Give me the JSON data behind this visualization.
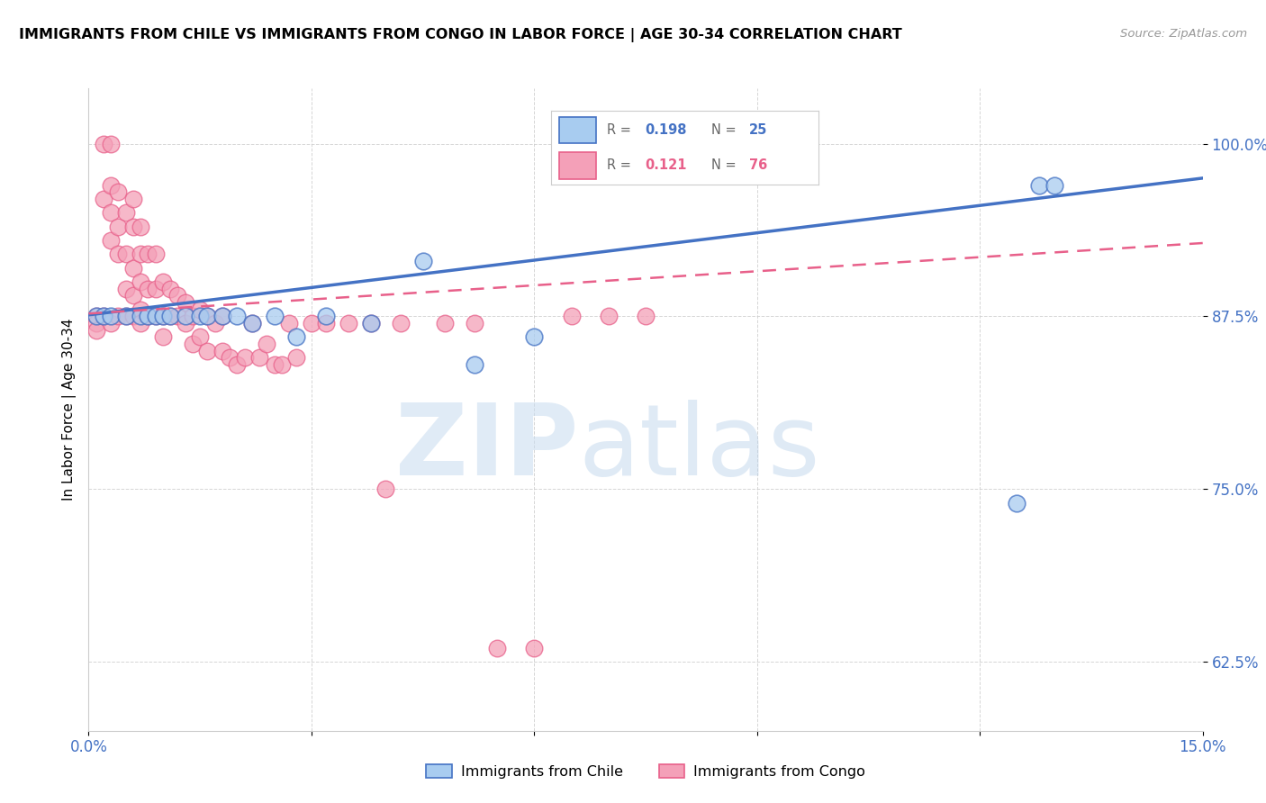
{
  "title": "IMMIGRANTS FROM CHILE VS IMMIGRANTS FROM CONGO IN LABOR FORCE | AGE 30-34 CORRELATION CHART",
  "source": "Source: ZipAtlas.com",
  "ylabel": "In Labor Force | Age 30-34",
  "yticks": [
    62.5,
    75.0,
    87.5,
    100.0
  ],
  "xlim": [
    0.0,
    0.15
  ],
  "ylim": [
    0.575,
    1.04
  ],
  "color_chile": "#A8CCF0",
  "color_congo": "#F4A0B8",
  "color_chile_line": "#4472C4",
  "color_congo_line": "#E8608A",
  "chile_x": [
    0.001,
    0.002,
    0.003,
    0.005,
    0.007,
    0.008,
    0.009,
    0.01,
    0.011,
    0.013,
    0.015,
    0.016,
    0.018,
    0.02,
    0.022,
    0.025,
    0.028,
    0.032,
    0.038,
    0.045,
    0.052,
    0.06,
    0.125,
    0.128,
    0.13
  ],
  "chile_y": [
    0.875,
    0.875,
    0.875,
    0.875,
    0.875,
    0.875,
    0.875,
    0.875,
    0.875,
    0.875,
    0.875,
    0.875,
    0.875,
    0.875,
    0.87,
    0.875,
    0.86,
    0.875,
    0.87,
    0.915,
    0.84,
    0.86,
    0.74,
    0.97,
    0.97
  ],
  "congo_x": [
    0.001,
    0.001,
    0.001,
    0.002,
    0.002,
    0.002,
    0.003,
    0.003,
    0.003,
    0.003,
    0.003,
    0.004,
    0.004,
    0.004,
    0.004,
    0.005,
    0.005,
    0.005,
    0.005,
    0.006,
    0.006,
    0.006,
    0.006,
    0.006,
    0.007,
    0.007,
    0.007,
    0.007,
    0.007,
    0.008,
    0.008,
    0.008,
    0.009,
    0.009,
    0.009,
    0.01,
    0.01,
    0.01,
    0.011,
    0.011,
    0.012,
    0.012,
    0.013,
    0.013,
    0.014,
    0.014,
    0.015,
    0.015,
    0.016,
    0.016,
    0.017,
    0.018,
    0.018,
    0.019,
    0.02,
    0.021,
    0.022,
    0.023,
    0.024,
    0.025,
    0.026,
    0.027,
    0.028,
    0.03,
    0.032,
    0.035,
    0.038,
    0.04,
    0.042,
    0.048,
    0.052,
    0.055,
    0.06,
    0.065,
    0.07,
    0.075
  ],
  "congo_y": [
    0.875,
    0.87,
    0.865,
    1.0,
    0.96,
    0.875,
    1.0,
    0.97,
    0.95,
    0.93,
    0.87,
    0.965,
    0.94,
    0.92,
    0.875,
    0.95,
    0.92,
    0.895,
    0.875,
    0.96,
    0.94,
    0.91,
    0.89,
    0.875,
    0.94,
    0.92,
    0.9,
    0.88,
    0.87,
    0.92,
    0.895,
    0.875,
    0.92,
    0.895,
    0.875,
    0.9,
    0.875,
    0.86,
    0.895,
    0.875,
    0.89,
    0.875,
    0.885,
    0.87,
    0.875,
    0.855,
    0.88,
    0.86,
    0.875,
    0.85,
    0.87,
    0.875,
    0.85,
    0.845,
    0.84,
    0.845,
    0.87,
    0.845,
    0.855,
    0.84,
    0.84,
    0.87,
    0.845,
    0.87,
    0.87,
    0.87,
    0.87,
    0.75,
    0.87,
    0.87,
    0.87,
    0.635,
    0.635,
    0.875,
    0.875,
    0.875
  ]
}
